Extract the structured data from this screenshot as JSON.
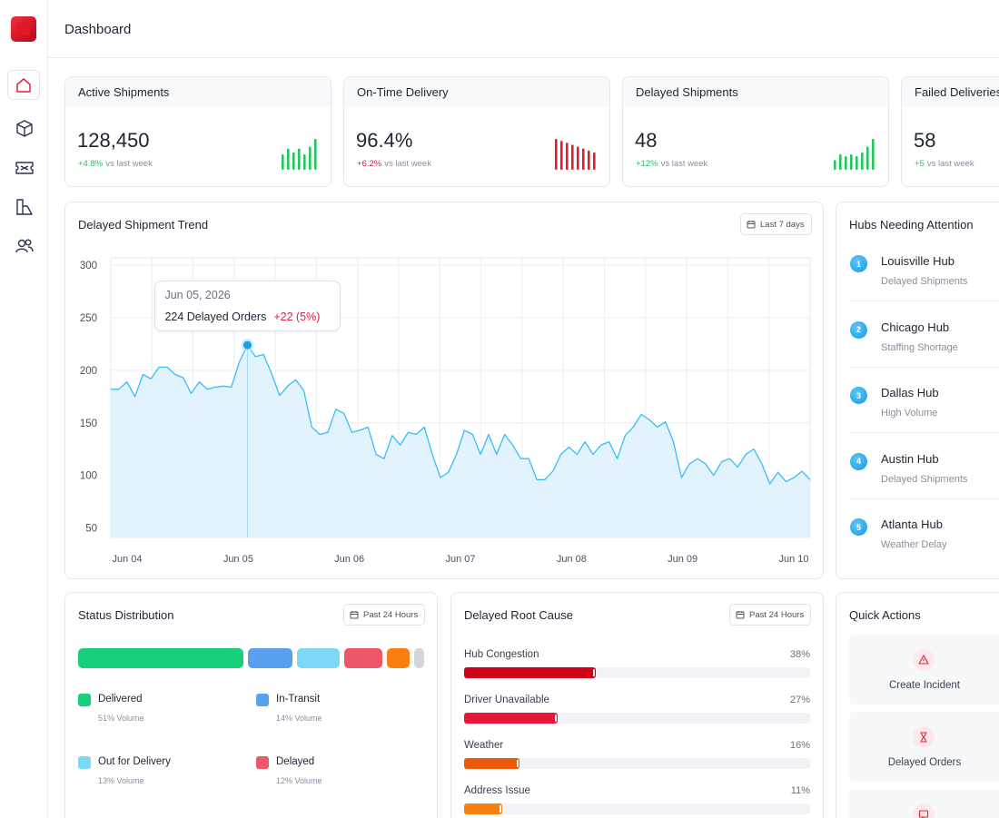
{
  "header": {
    "title": "Dashboard"
  },
  "kpis": [
    {
      "label": "Active Shipments",
      "value": "128,450",
      "delta": "+4.8%",
      "delta_note": "vs last week",
      "delta_color": "#22c55e",
      "spark": [
        16,
        22,
        18,
        22,
        16,
        24,
        32
      ],
      "spark_color": "#22c55e"
    },
    {
      "label": "On-Time Delivery",
      "value": "96.4%",
      "delta": "+6.2%",
      "delta_note": "vs last week",
      "delta_color": "#e11d48",
      "spark": [
        32,
        30,
        28,
        26,
        24,
        22,
        20,
        18
      ],
      "spark_color": "#e11d2a"
    },
    {
      "label": "Delayed Shipments",
      "value": 48,
      "delta": "+12%",
      "delta_note": "vs last week",
      "delta_color": "#22c55e",
      "spark": [
        10,
        16,
        14,
        16,
        14,
        18,
        24,
        32
      ],
      "spark_color": "#22c55e"
    },
    {
      "label": "Failed Deliveries",
      "value": 58,
      "delta": "+5",
      "delta_note": "vs last week",
      "delta_color": "#22c55e",
      "spark": [],
      "spark_color": "#22c55e"
    }
  ],
  "trend": {
    "title": "Delayed Shipment Trend",
    "range_button": "Last 7 days",
    "chart_data": {
      "type": "area",
      "x_labels": [
        "Jun 04",
        "Jun 05",
        "Jun 06",
        "Jun 07",
        "Jun 08",
        "Jun 09",
        "Jun 10"
      ],
      "values": [
        182,
        182,
        189,
        175,
        196,
        192,
        203,
        203,
        196,
        193,
        178,
        189,
        182,
        184,
        185,
        184,
        208,
        224,
        213,
        215,
        197,
        176,
        185,
        191,
        181,
        146,
        139,
        141,
        163,
        159,
        141,
        143,
        146,
        120,
        116,
        138,
        129,
        141,
        139,
        146,
        120,
        98,
        103,
        120,
        143,
        139,
        120,
        139,
        120,
        139,
        129,
        116,
        116,
        96,
        96,
        104,
        120,
        127,
        120,
        132,
        120,
        129,
        132,
        116,
        138,
        146,
        158,
        153,
        146,
        151,
        132,
        98,
        111,
        116,
        111,
        100,
        113,
        116,
        108,
        120,
        125,
        111,
        92,
        103,
        94,
        98,
        104,
        96
      ],
      "color": "#38bdf8",
      "ylim": [
        41,
        307
      ],
      "yticks": [
        50,
        100,
        150,
        200,
        250,
        300
      ],
      "grid": true,
      "tooltip": {
        "date": "Jun 05, 2026",
        "text": "224 Delayed Orders",
        "change": "+22 (5%)"
      }
    }
  },
  "hubs": {
    "title": "Hubs Needing Attention",
    "items": [
      {
        "rank": 1,
        "name": "Louisville Hub",
        "reason": "Delayed Shipments"
      },
      {
        "rank": 2,
        "name": "Chicago Hub",
        "reason": "Staffing Shortage"
      },
      {
        "rank": 3,
        "name": "Dallas Hub",
        "reason": "High Volume"
      },
      {
        "rank": 4,
        "name": "Austin Hub",
        "reason": "Delayed Shipments"
      },
      {
        "rank": 5,
        "name": "Atlanta Hub",
        "reason": "Weather Delay"
      }
    ]
  },
  "status": {
    "title": "Status Distribution",
    "range_button": "Past 24 Hours",
    "segments": [
      {
        "name": "Delivered",
        "value": 51,
        "value_label": "51% Volume",
        "color": "#16d07a"
      },
      {
        "name": "In-Transit",
        "value": 14,
        "value_label": "14% Volume",
        "color": "#5aa0f0"
      },
      {
        "name": "Out for Delivery",
        "value": 13,
        "value_label": "13% Volume",
        "color": "#7dd8f8"
      },
      {
        "name": "Delayed",
        "value": 12,
        "value_label": "12% Volume",
        "color": "#f0566a"
      },
      {
        "value": 7,
        "color": "#f98010"
      },
      {
        "value": 3,
        "color": "#d4d6dc"
      }
    ]
  },
  "root_cause": {
    "title": "Delayed Root Cause",
    "range_button": "Past 24 Hours",
    "xlim": [
      0,
      100
    ],
    "items": [
      {
        "name": "Hub Congestion",
        "value": 38,
        "value_label": "38%",
        "color": "#d0021b"
      },
      {
        "name": "Driver Unavailable",
        "value": 27,
        "value_label": "27%",
        "color": "#e8173a"
      },
      {
        "name": "Weather",
        "value": 16,
        "value_label": "16%",
        "color": "#ea5a0c"
      },
      {
        "name": "Address Issue",
        "value": 11,
        "value_label": "11%",
        "color": "#f98010"
      }
    ]
  },
  "quick_actions": {
    "title": "Quick Actions",
    "items": [
      "Create Incident",
      "Delayed Orders"
    ]
  }
}
